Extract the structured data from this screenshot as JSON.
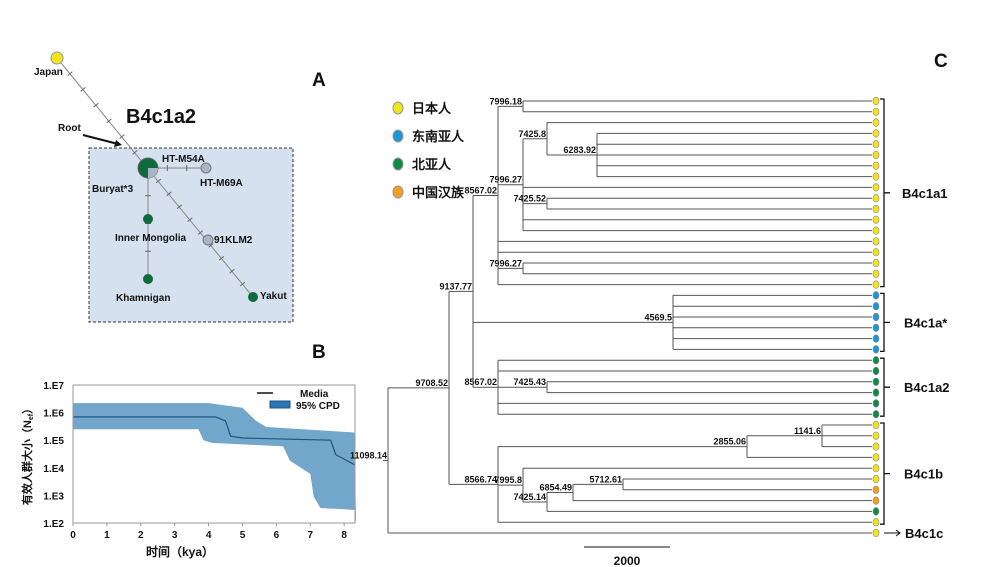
{
  "panels": {
    "a": "A",
    "b": "B",
    "c": "C"
  },
  "network": {
    "title": "B4c1a2",
    "root_label": "Root",
    "nodes": {
      "japan": "Japan",
      "ht_m54a": "HT-M54A",
      "ht_m69a": "HT-M69A",
      "buryat": "Buryat*3",
      "inner_mongolia": "Inner Mongolia",
      "klm2": "91KLM2",
      "khamnigan": "Khamnigan",
      "yakut": "Yakut"
    }
  },
  "colors": {
    "japanese": "#f2e41a",
    "southeast_asian": "#1e95d4",
    "north_asian": "#0f8a46",
    "han_chinese": "#f0a01e",
    "network_green": "#0d6b3c",
    "network_grey": "#a9b4c4",
    "box_bg": "#d6e1ef",
    "ci_fill": "#72a6cb",
    "median_line": "#1d557f"
  },
  "chart_data": {
    "type": "area",
    "title": "",
    "xlabel": "时间（kya）",
    "ylabel": "有效人群大小（N",
    "ylabel_sub": "ef",
    "ylabel_close": "）",
    "xlim": [
      0,
      8.35
    ],
    "ylim": [
      100,
      10000000
    ],
    "yscale": "log",
    "x_ticks": [
      "0",
      "1",
      "2",
      "3",
      "4",
      "5",
      "6",
      "7",
      "8"
    ],
    "y_ticks": [
      "1.E2",
      "1.E3",
      "1.E4",
      "1.E5",
      "1.E6",
      "1.E7"
    ],
    "legend": {
      "placement": "top-right",
      "median": "Media",
      "ci": "95% CPD"
    },
    "series": [
      {
        "name": "Media",
        "points": [
          [
            0,
            700000
          ],
          [
            4.2,
            700000
          ],
          [
            4.5,
            500000
          ],
          [
            4.65,
            140000
          ],
          [
            5,
            120000
          ],
          [
            7.6,
            100000
          ],
          [
            7.75,
            30000
          ],
          [
            8.3,
            13000
          ]
        ]
      },
      {
        "name": "95% CPD upper",
        "points": [
          [
            0,
            2200000
          ],
          [
            4,
            2200000
          ],
          [
            5,
            1500000
          ],
          [
            5.4,
            500000
          ],
          [
            5.7,
            300000
          ],
          [
            8.3,
            190000
          ]
        ]
      },
      {
        "name": "95% CPD lower",
        "points": [
          [
            0,
            250000
          ],
          [
            3.7,
            250000
          ],
          [
            3.85,
            100000
          ],
          [
            4.1,
            80000
          ],
          [
            6.2,
            60000
          ],
          [
            6.4,
            18000
          ],
          [
            7,
            6000
          ],
          [
            7.1,
            900
          ],
          [
            7.3,
            350
          ],
          [
            8.3,
            300
          ],
          [
            8.35,
            100
          ]
        ]
      }
    ]
  },
  "legend_c": [
    {
      "label": "日本人",
      "color_key": "japanese"
    },
    {
      "label": "东南亚人",
      "color_key": "southeast_asian"
    },
    {
      "label": "北亚人",
      "color_key": "north_asian"
    },
    {
      "label": "中国汉族",
      "color_key": "han_chinese"
    }
  ],
  "tree": {
    "node_labels": {
      "n11098": "11098.14",
      "n9708": "9708.52",
      "n9137": "9137.77",
      "u8567": "8567.02",
      "n7996_18": "7996.18",
      "n7996_27a": "7996.27",
      "n7425_8": "7425.8",
      "n6283": "6283.92",
      "n7425_52": "7425.52",
      "n7996_27b": "7996.27",
      "n4569": "4569.5",
      "l8567": "8567.02",
      "n7425_43": "7425.43",
      "n8566": "8566.74",
      "n2855": "2855.06",
      "n1141": "1141.6",
      "n7995": "7995.8",
      "n7425_14": "7425.14",
      "n6854": "6854.49",
      "n5712": "5712.61"
    },
    "leaves": [
      "japanese",
      "japanese",
      "japanese",
      "japanese",
      "japanese",
      "japanese",
      "japanese",
      "japanese",
      "japanese",
      "japanese",
      "japanese",
      "japanese",
      "japanese",
      "japanese",
      "japanese",
      "japanese",
      "japanese",
      "japanese",
      "southeast_asian",
      "southeast_asian",
      "southeast_asian",
      "southeast_asian",
      "southeast_asian",
      "southeast_asian",
      "north_asian",
      "north_asian",
      "north_asian",
      "north_asian",
      "north_asian",
      "north_asian",
      "japanese",
      "japanese",
      "japanese",
      "japanese",
      "japanese",
      "japanese",
      "han_chinese",
      "han_chinese",
      "north_asian",
      "japanese",
      "japanese"
    ],
    "clades": [
      "B4c1a1",
      "B4c1a*",
      "B4c1a2",
      "B4c1b",
      "B4c1c"
    ],
    "scale_label": "2000"
  }
}
